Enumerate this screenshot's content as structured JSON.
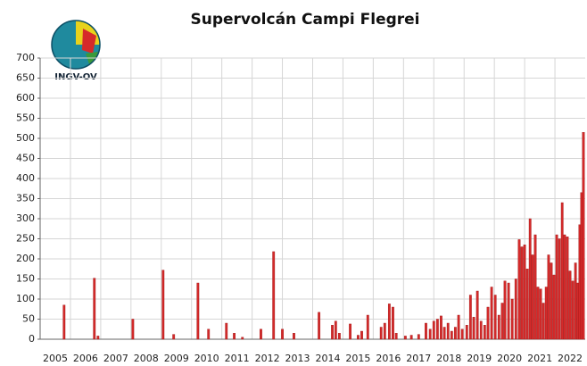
{
  "chart_data": {
    "type": "bar",
    "title": "Supervolcán Campi Flegrei",
    "logo_text": "INGV-OV",
    "color": "#d42a2a",
    "grid": true,
    "xlim": [
      2005,
      2023
    ],
    "xticks": [
      2005,
      2006,
      2007,
      2008,
      2009,
      2010,
      2011,
      2012,
      2013,
      2014,
      2015,
      2016,
      2017,
      2018,
      2019,
      2020,
      2021,
      2022
    ],
    "ylim": [
      0,
      700
    ],
    "yticks": [
      0,
      50,
      100,
      150,
      200,
      250,
      300,
      350,
      400,
      450,
      500,
      550,
      600,
      650,
      700
    ],
    "x": [
      2005.79,
      2006.79,
      2006.91,
      2008.06,
      2009.06,
      2009.41,
      2010.21,
      2010.56,
      2011.15,
      2011.41,
      2011.68,
      2012.29,
      2012.71,
      2013.0,
      2013.38,
      2014.21,
      2014.65,
      2014.76,
      2014.88,
      2015.24,
      2015.5,
      2015.62,
      2015.82,
      2016.26,
      2016.38,
      2016.53,
      2016.65,
      2016.76,
      2017.06,
      2017.26,
      2017.5,
      2017.74,
      2017.88,
      2018.0,
      2018.12,
      2018.24,
      2018.35,
      2018.47,
      2018.59,
      2018.71,
      2018.82,
      2018.94,
      2019.09,
      2019.21,
      2019.32,
      2019.44,
      2019.56,
      2019.68,
      2019.79,
      2019.91,
      2020.03,
      2020.15,
      2020.26,
      2020.35,
      2020.47,
      2020.59,
      2020.71,
      2020.82,
      2020.91,
      2021.0,
      2021.09,
      2021.18,
      2021.26,
      2021.35,
      2021.44,
      2021.53,
      2021.62,
      2021.71,
      2021.79,
      2021.88,
      2021.97,
      2022.06,
      2022.15,
      2022.24,
      2022.32,
      2022.41,
      2022.5,
      2022.59,
      2022.68,
      2022.76,
      2022.82,
      2022.88,
      2022.94
    ],
    "values": [
      85,
      152,
      8,
      50,
      172,
      12,
      140,
      25,
      40,
      15,
      5,
      25,
      218,
      25,
      15,
      67,
      35,
      45,
      15,
      38,
      10,
      20,
      60,
      30,
      40,
      88,
      80,
      15,
      8,
      10,
      12,
      40,
      25,
      45,
      50,
      58,
      30,
      40,
      20,
      30,
      60,
      25,
      35,
      110,
      55,
      120,
      45,
      35,
      80,
      130,
      110,
      60,
      90,
      145,
      140,
      100,
      150,
      248,
      230,
      235,
      175,
      300,
      210,
      260,
      130,
      125,
      90,
      130,
      210,
      190,
      160,
      260,
      250,
      340,
      260,
      255,
      170,
      145,
      190,
      140,
      285,
      365,
      515
    ]
  }
}
